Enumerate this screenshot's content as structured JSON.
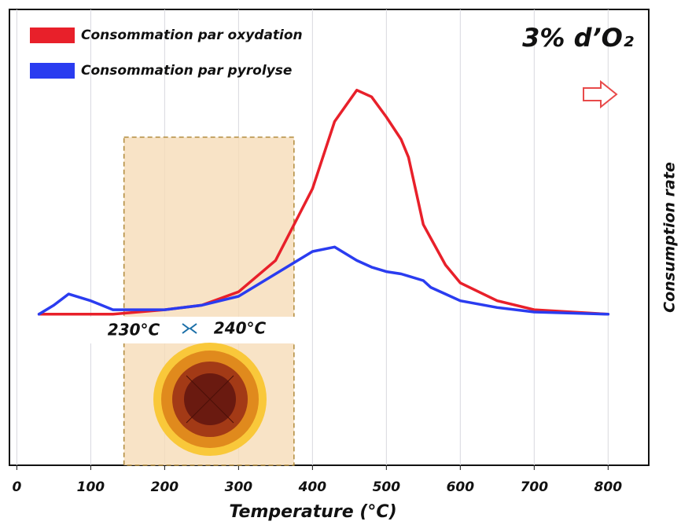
{
  "chart_data": {
    "type": "line",
    "title": "3% d’O₂",
    "xlabel": "Temperature (°C)",
    "ylabel": "Consumption rate",
    "x": [
      30,
      50,
      70,
      100,
      130,
      200,
      250,
      300,
      350,
      400,
      430,
      460,
      480,
      500,
      520,
      530,
      550,
      560,
      580,
      600,
      650,
      700,
      800
    ],
    "series": [
      {
        "name": "Consommation par oxydation",
        "color": "#e8202a",
        "values": [
          0,
          0,
          0,
          0,
          0,
          0.1,
          0.2,
          0.5,
          1.2,
          2.8,
          4.3,
          5,
          4.85,
          4.4,
          3.9,
          3.5,
          2.0,
          1.7,
          1.1,
          0.7,
          0.3,
          0.1,
          0
        ]
      },
      {
        "name": "Consommation par pyrolyse",
        "color": "#2a3cf0",
        "values": [
          0,
          0.2,
          0.45,
          0.3,
          0.1,
          0.1,
          0.2,
          0.4,
          0.9,
          1.4,
          1.5,
          1.2,
          1.05,
          0.95,
          0.9,
          0.85,
          0.75,
          0.6,
          0.45,
          0.3,
          0.15,
          0.05,
          0
        ]
      }
    ],
    "xlim": [
      -10,
      855
    ],
    "ylim": [
      -3.37,
      6.8
    ],
    "xticks": [
      0,
      100,
      200,
      300,
      400,
      500,
      600,
      700,
      800
    ],
    "grid": true,
    "legend": "upper left",
    "highlight": {
      "x": [
        145,
        375
      ],
      "y": [
        -3.37,
        3.95
      ],
      "color": "#f6dcb8"
    },
    "annotations": [
      "230°C",
      "240°C"
    ]
  }
}
